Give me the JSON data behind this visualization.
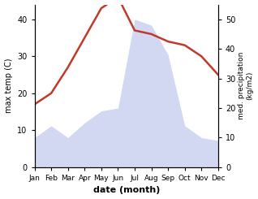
{
  "months": [
    "Jan",
    "Feb",
    "Mar",
    "Apr",
    "May",
    "Jun",
    "Jul",
    "Aug",
    "Sep",
    "Oct",
    "Nov",
    "Dec"
  ],
  "temperature": [
    17,
    20,
    27,
    35,
    43,
    46,
    37,
    36,
    34,
    33,
    30,
    25
  ],
  "precipitation": [
    10,
    14,
    10,
    15,
    19,
    20,
    50,
    48,
    38,
    14,
    10,
    9
  ],
  "temp_color": "#c0392b",
  "precip_fill_color": "#b0b8e8",
  "precip_fill_alpha": 0.55,
  "left_ylim": [
    0,
    44
  ],
  "left_yticks": [
    0,
    10,
    20,
    30,
    40
  ],
  "right_ylim": [
    0,
    55
  ],
  "right_yticks": [
    0,
    10,
    20,
    30,
    40,
    50
  ],
  "left_ylabel": "max temp (C)",
  "right_ylabel": "med. precipitation\n(kg/m2)",
  "xlabel": "date (month)",
  "fig_width": 3.18,
  "fig_height": 2.45,
  "dpi": 100
}
